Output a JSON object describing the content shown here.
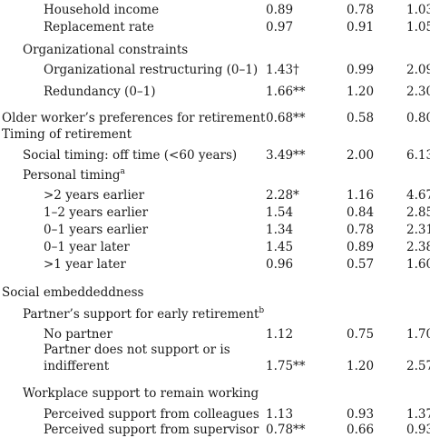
{
  "rows": [
    {
      "label": "Household income",
      "indent": 2,
      "vals": [
        "0.89",
        "0.78",
        "1.03"
      ]
    },
    {
      "label": "Replacement rate",
      "indent": 2,
      "vals": [
        "0.97",
        "0.91",
        "1.05"
      ]
    },
    {
      "label": "Organizational constraints",
      "indent": 1,
      "vals": [
        "",
        "",
        ""
      ]
    },
    {
      "label": "Organizational restructuring (0–1)",
      "indent": 2,
      "vals": [
        "1.43†",
        "0.99",
        "2.09"
      ]
    },
    {
      "label": "Redundancy (0–1)",
      "indent": 2,
      "vals": [
        "1.66**",
        "1.20",
        "2.30"
      ]
    },
    {
      "label": "Older worker’s preferences for retirement",
      "indent": 0,
      "vals": [
        "0.68**",
        "0.58",
        "0.80"
      ]
    },
    {
      "label": "Timing of retirement",
      "indent": 0,
      "vals": [
        "",
        "",
        ""
      ]
    },
    {
      "label": "Social timing: off time (<60 years)",
      "indent": 1,
      "vals": [
        "3.49**",
        "2.00",
        "6.13"
      ]
    },
    {
      "label": "Personal timing",
      "sup": "a",
      "indent": 1,
      "vals": [
        "",
        "",
        ""
      ]
    },
    {
      "label": ">2 years earlier",
      "indent": 2,
      "vals": [
        "2.28*",
        "1.16",
        "4.67"
      ]
    },
    {
      "label": "1–2 years earlier",
      "indent": 2,
      "vals": [
        "1.54",
        "0.84",
        "2.85"
      ]
    },
    {
      "label": "0–1 years earlier",
      "indent": 2,
      "vals": [
        "1.34",
        "0.78",
        "2.31"
      ]
    },
    {
      "label": "0–1 year later",
      "indent": 2,
      "vals": [
        "1.45",
        "0.89",
        "2.38"
      ]
    },
    {
      "label": ">1 year later",
      "indent": 2,
      "vals": [
        "0.96",
        "0.57",
        "1.60"
      ]
    },
    {
      "label": "Social embeddeddness",
      "indent": 0,
      "vals": [
        "",
        "",
        ""
      ]
    },
    {
      "label": "Partner’s support for early retirement",
      "sup": "b",
      "indent": 1,
      "vals": [
        "",
        "",
        ""
      ]
    },
    {
      "label": "No partner",
      "indent": 2,
      "vals": [
        "1.12",
        "0.75",
        "1.70"
      ]
    },
    {
      "label": "Partner does not support or is",
      "indent": 2,
      "vals": [
        "",
        "",
        ""
      ]
    },
    {
      "label": "indifferent",
      "indent": 2,
      "vals": [
        "1.75**",
        "1.20",
        "2.57"
      ]
    },
    {
      "label": "Workplace support to remain working",
      "indent": 1,
      "vals": [
        "",
        "",
        ""
      ]
    },
    {
      "label": "Perceived support from colleagues",
      "indent": 2,
      "vals": [
        "1.13",
        "0.93",
        "1.37"
      ]
    },
    {
      "label": "Perceived support from supervisor",
      "indent": 2,
      "vals": [
        "0.78**",
        "0.66",
        "0.93"
      ]
    }
  ]
}
